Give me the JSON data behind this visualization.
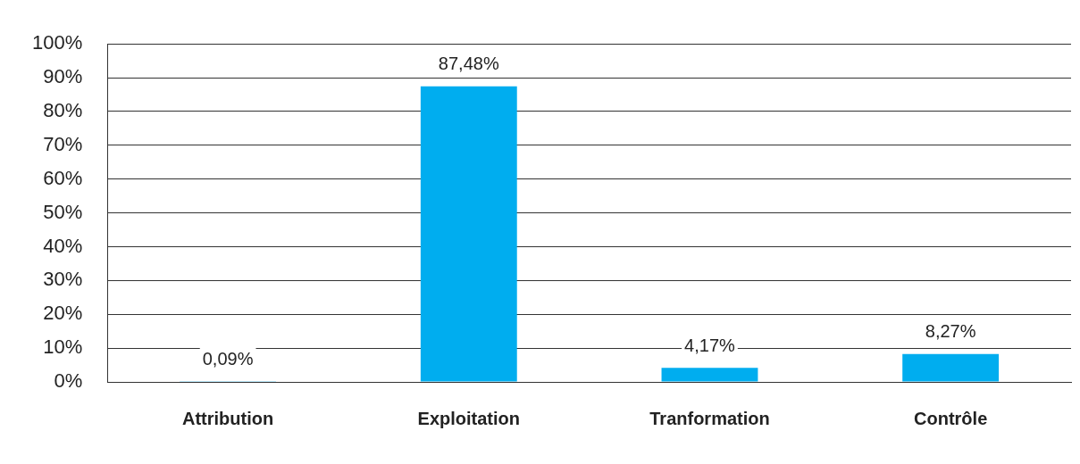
{
  "chart_data": {
    "type": "bar",
    "categories": [
      "Attribution",
      "Exploitation",
      "Tranformation",
      "Contrôle"
    ],
    "values": [
      0.09,
      87.48,
      4.17,
      8.27
    ],
    "color": "#00adef",
    "value_labels": [
      "0,09%",
      "87,48%",
      "4,17%",
      "8,27%"
    ],
    "ylim": [
      0,
      100
    ],
    "yticks": [
      {
        "value": 0,
        "label": "0%"
      },
      {
        "value": 10,
        "label": "10%"
      },
      {
        "value": 20,
        "label": "20%"
      },
      {
        "value": 30,
        "label": "30%"
      },
      {
        "value": 40,
        "label": "40%"
      },
      {
        "value": 50,
        "label": "50%"
      },
      {
        "value": 60,
        "label": "60%"
      },
      {
        "value": 70,
        "label": "70%"
      },
      {
        "value": 80,
        "label": "80%"
      },
      {
        "value": 90,
        "label": "90%"
      },
      {
        "value": 100,
        "label": "100%"
      }
    ],
    "grid": "y",
    "legend": false
  }
}
